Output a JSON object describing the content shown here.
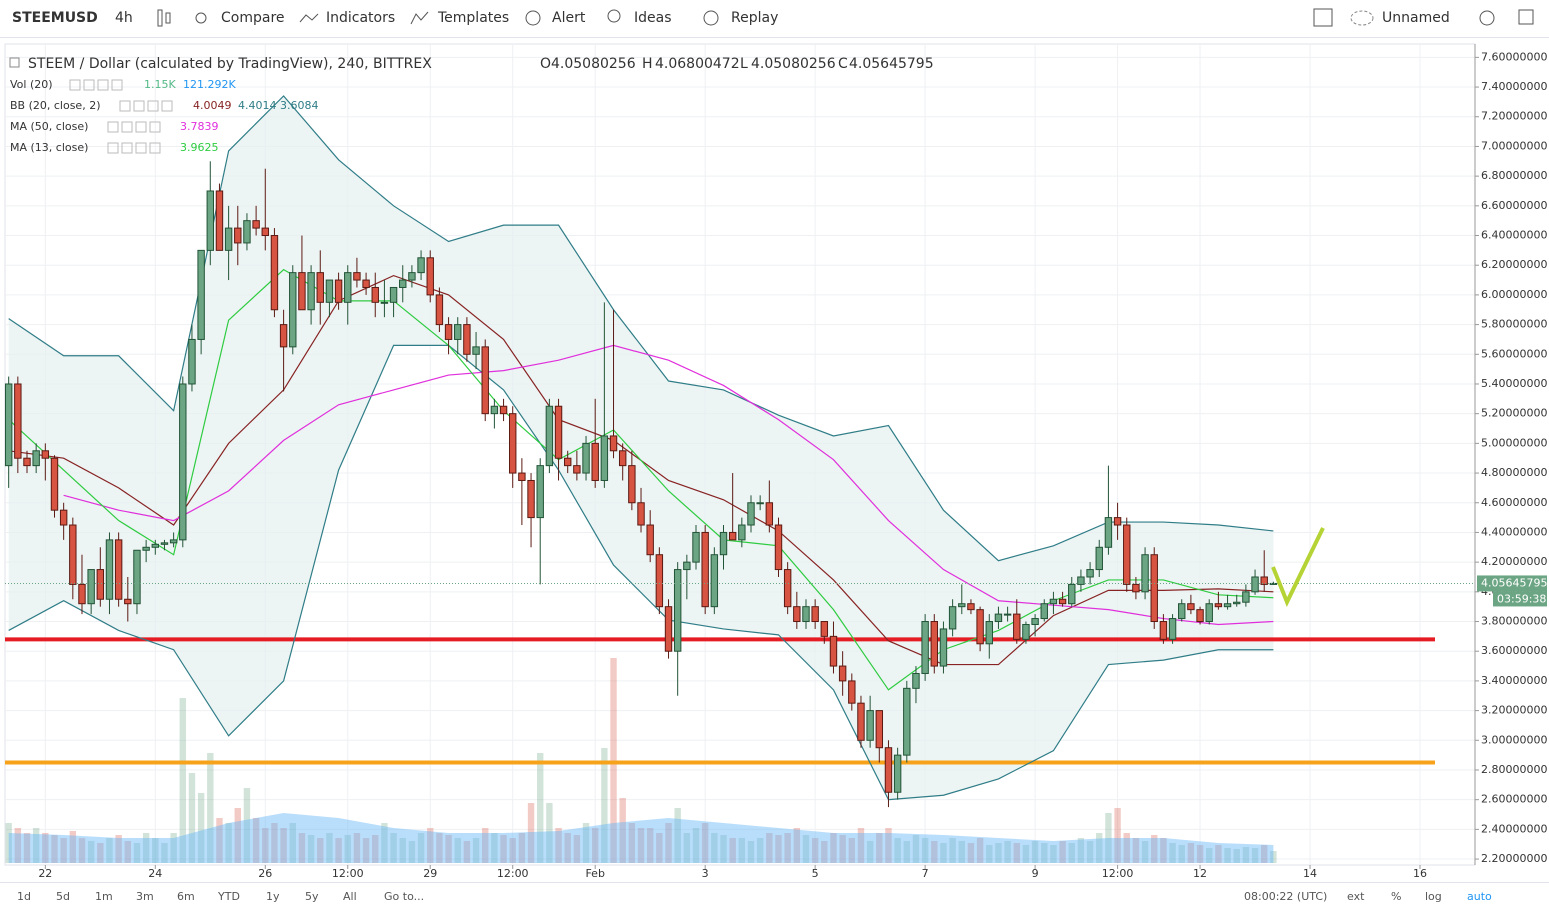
{
  "toolbar": {
    "symbol": "STEEMUSD",
    "interval": "4h",
    "items": [
      "Compare",
      "Indicators",
      "Templates",
      "Alert",
      "Ideas",
      "Replay"
    ],
    "layout_name": "Unnamed"
  },
  "legend": {
    "title": "STEEM / Dollar (calculated by TradingView), 240, BITTREX",
    "ohlc_labels": [
      "O",
      "H",
      "L",
      "C"
    ],
    "indicators": [
      {
        "name": "Vol (20)",
        "values": [
          "1.15K",
          "121.292K"
        ],
        "colors": [
          "#53b987",
          "#2196f3"
        ]
      },
      {
        "name": "BB (20, close, 2)",
        "values": [
          4.0049,
          4.4014,
          3.6084
        ],
        "colors": [
          "#872323",
          "#2f7d87",
          "#2f7d87"
        ]
      },
      {
        "name": "MA (50, close)",
        "values": [
          3.7839
        ],
        "colors": [
          "#e02fdc"
        ]
      },
      {
        "name": "MA (13, close)",
        "values": [
          3.9625
        ],
        "colors": [
          "#2ecc40"
        ]
      }
    ]
  },
  "bottom_bar": {
    "ranges": [
      "1d",
      "5d",
      "1m",
      "3m",
      "6m",
      "YTD",
      "1y",
      "5y",
      "All"
    ],
    "goto": "Go to...",
    "clock": "08:00:22 (UTC)",
    "options": [
      "ext",
      "%",
      "log",
      "auto"
    ]
  },
  "chart_data": {
    "type": "candlestick",
    "countdown": "03:59:38",
    "grid": true,
    "up_color": "#6ba583",
    "down_color": "#d75442",
    "xlim": [
      -0.4,
      160
    ],
    "ylim": [
      2.16,
      7.69
    ],
    "xticks": [
      {
        "value": 4,
        "label": "22"
      },
      {
        "value": 16,
        "label": "24"
      },
      {
        "value": 28,
        "label": "26"
      },
      {
        "value": 37,
        "label": "12:00"
      },
      {
        "value": 46,
        "label": "29"
      },
      {
        "value": 55,
        "label": "12:00"
      },
      {
        "value": 64,
        "label": "Feb"
      },
      {
        "value": 76,
        "label": "3"
      },
      {
        "value": 88,
        "label": "5"
      },
      {
        "value": 100,
        "label": "7"
      },
      {
        "value": 112,
        "label": "9"
      },
      {
        "value": 121,
        "label": "12:00"
      },
      {
        "value": 130,
        "label": "12"
      },
      {
        "value": 142,
        "label": "14"
      },
      {
        "value": 154,
        "label": "16"
      }
    ],
    "yticks": [
      {
        "value": 7.6,
        "label": "7.60000000"
      },
      {
        "value": 7.4,
        "label": "7.40000000"
      },
      {
        "value": 7.2,
        "label": "7.20000000"
      },
      {
        "value": 7.0,
        "label": "7.00000000"
      },
      {
        "value": 6.8,
        "label": "6.80000000"
      },
      {
        "value": 6.6,
        "label": "6.60000000"
      },
      {
        "value": 6.4,
        "label": "6.40000000"
      },
      {
        "value": 6.2,
        "label": "6.20000000"
      },
      {
        "value": 6.0,
        "label": "6.00000000"
      },
      {
        "value": 5.8,
        "label": "5.80000000"
      },
      {
        "value": 5.6,
        "label": "5.60000000"
      },
      {
        "value": 5.4,
        "label": "5.40000000"
      },
      {
        "value": 5.2,
        "label": "5.20000000"
      },
      {
        "value": 5.0,
        "label": "5.00000000"
      },
      {
        "value": 4.8,
        "label": "4.80000000"
      },
      {
        "value": 4.6,
        "label": "4.60000000"
      },
      {
        "value": 4.4,
        "label": "4.40000000"
      },
      {
        "value": 4.2,
        "label": "4.20000000"
      },
      {
        "value": 4.0,
        "label": "4.00000000"
      },
      {
        "value": 3.8,
        "label": "3.80000000"
      },
      {
        "value": 3.6,
        "label": "3.60000000"
      },
      {
        "value": 3.4,
        "label": "3.40000000"
      },
      {
        "value": 3.2,
        "label": "3.20000000"
      },
      {
        "value": 3.0,
        "label": "3.00000000"
      },
      {
        "value": 2.8,
        "label": "2.80000000"
      },
      {
        "value": 2.6,
        "label": "2.60000000"
      },
      {
        "value": 2.4,
        "label": "2.40000000"
      },
      {
        "value": 2.2,
        "label": "2.20000000"
      }
    ],
    "open": [
      4.85,
      5.4,
      4.9,
      4.85,
      4.95,
      4.9,
      4.55,
      4.45,
      4.05,
      3.92,
      4.15,
      3.95,
      4.35,
      3.95,
      3.92,
      4.28,
      4.3,
      4.32,
      4.33,
      4.35,
      5.4,
      5.7,
      6.3,
      6.7,
      6.3,
      6.45,
      6.35,
      6.5,
      6.45,
      6.4,
      5.8,
      5.65,
      6.15,
      5.9,
      6.15,
      5.95,
      6.1,
      5.95,
      6.15,
      6.1,
      6.05,
      5.95,
      5.95,
      6.05,
      6.1,
      6.15,
      6.25,
      6.0,
      5.8,
      5.7,
      5.8,
      5.6,
      5.65,
      5.2,
      5.25,
      5.2,
      4.8,
      4.75,
      4.5,
      4.85,
      5.25,
      4.9,
      4.85,
      4.8,
      5.0,
      4.75,
      5.05,
      4.95,
      4.85,
      4.6,
      4.45,
      4.25,
      3.9,
      3.6,
      4.15,
      4.2,
      4.4,
      3.9,
      4.25,
      4.4,
      4.35,
      4.45,
      4.6,
      4.6,
      4.45,
      4.15,
      3.9,
      3.8,
      3.9,
      3.8,
      3.7,
      3.5,
      3.4,
      3.25,
      3.0,
      3.2,
      2.95,
      2.65,
      2.9,
      3.35,
      3.45,
      3.8,
      3.5,
      3.75,
      3.9,
      3.92,
      3.88,
      3.65,
      3.8,
      3.85,
      3.85,
      3.68,
      3.78,
      3.82,
      3.92,
      3.95,
      3.92,
      4.05,
      4.1,
      4.15,
      4.3,
      4.5,
      4.45,
      4.05,
      4.0,
      4.25,
      3.8,
      3.68,
      3.82,
      3.92,
      3.88,
      3.8,
      3.92,
      3.9,
      3.92,
      3.93,
      4.0,
      4.1,
      4.05080256
    ],
    "high": [
      5.45,
      5.45,
      4.95,
      5.0,
      5.0,
      4.92,
      4.6,
      4.5,
      4.25,
      4.15,
      4.3,
      4.4,
      4.4,
      4.1,
      4.25,
      4.35,
      4.35,
      4.35,
      4.4,
      5.45,
      5.8,
      6.3,
      6.9,
      6.75,
      6.6,
      6.6,
      6.55,
      6.6,
      6.85,
      6.45,
      5.9,
      6.2,
      6.4,
      6.2,
      6.3,
      6.1,
      6.15,
      6.2,
      6.25,
      6.15,
      6.15,
      6.1,
      6.05,
      6.2,
      6.2,
      6.3,
      6.3,
      6.05,
      5.85,
      5.85,
      5.85,
      5.75,
      5.7,
      5.3,
      5.3,
      5.25,
      4.9,
      4.8,
      4.9,
      5.3,
      5.3,
      4.95,
      4.95,
      5.05,
      5.3,
      5.95,
      5.9,
      5.0,
      4.95,
      4.7,
      4.55,
      4.3,
      3.95,
      4.2,
      4.25,
      4.45,
      4.45,
      4.3,
      4.45,
      4.8,
      4.5,
      4.65,
      4.65,
      4.75,
      4.5,
      4.2,
      4.0,
      3.95,
      3.95,
      3.8,
      3.8,
      3.6,
      3.45,
      3.3,
      3.3,
      3.2,
      3.0,
      2.95,
      3.4,
      3.5,
      3.85,
      3.85,
      3.8,
      3.95,
      4.05,
      3.95,
      3.9,
      3.85,
      3.9,
      3.9,
      3.95,
      3.8,
      3.85,
      3.95,
      4.0,
      4.0,
      4.1,
      4.15,
      4.2,
      4.35,
      4.85,
      4.6,
      4.5,
      4.1,
      4.3,
      4.3,
      3.85,
      3.85,
      3.95,
      3.98,
      3.9,
      3.95,
      4.0,
      3.98,
      3.98,
      4.05,
      4.15,
      4.28,
      4.06800472
    ],
    "low": [
      4.7,
      4.8,
      4.8,
      4.8,
      4.75,
      4.5,
      4.35,
      3.95,
      3.85,
      3.85,
      3.9,
      3.85,
      3.9,
      3.8,
      3.85,
      4.2,
      4.25,
      4.28,
      4.3,
      4.3,
      5.35,
      5.6,
      6.2,
      6.3,
      6.1,
      6.2,
      6.3,
      6.4,
      6.3,
      5.85,
      5.35,
      5.6,
      5.9,
      5.8,
      5.8,
      5.85,
      5.9,
      5.8,
      6.05,
      6.0,
      5.85,
      5.85,
      5.85,
      5.95,
      6.05,
      6.1,
      5.95,
      5.75,
      5.6,
      5.6,
      5.55,
      5.5,
      5.15,
      5.1,
      5.15,
      4.7,
      4.45,
      4.3,
      4.05,
      4.8,
      4.75,
      4.8,
      4.75,
      4.75,
      4.7,
      4.7,
      4.9,
      4.75,
      4.55,
      4.4,
      4.2,
      3.85,
      3.55,
      3.3,
      3.95,
      4.15,
      3.85,
      3.85,
      4.15,
      4.35,
      4.3,
      4.4,
      4.55,
      4.4,
      4.1,
      3.85,
      3.75,
      3.75,
      3.75,
      3.65,
      3.45,
      3.3,
      3.2,
      2.95,
      2.95,
      2.85,
      2.55,
      2.6,
      2.85,
      3.25,
      3.4,
      3.45,
      3.45,
      3.7,
      3.85,
      3.85,
      3.6,
      3.55,
      3.75,
      3.8,
      3.65,
      3.65,
      3.7,
      3.8,
      3.85,
      3.9,
      3.9,
      4.0,
      4.05,
      4.1,
      4.25,
      4.35,
      4.0,
      3.95,
      3.95,
      3.75,
      3.65,
      3.65,
      3.8,
      3.85,
      3.78,
      3.78,
      3.88,
      3.88,
      3.9,
      3.9,
      3.98,
      4.0,
      4.05080256
    ],
    "close": [
      5.4,
      4.9,
      4.85,
      4.95,
      4.9,
      4.55,
      4.45,
      4.05,
      3.92,
      4.15,
      3.95,
      4.35,
      3.95,
      3.92,
      4.28,
      4.3,
      4.32,
      4.33,
      4.35,
      5.4,
      5.7,
      6.3,
      6.7,
      6.3,
      6.45,
      6.35,
      6.5,
      6.45,
      6.4,
      5.9,
      5.65,
      6.15,
      5.9,
      6.15,
      5.95,
      6.1,
      5.95,
      6.15,
      6.1,
      6.05,
      5.95,
      5.95,
      6.05,
      6.1,
      6.15,
      6.25,
      6.0,
      5.8,
      5.7,
      5.8,
      5.6,
      5.65,
      5.2,
      5.25,
      5.2,
      4.8,
      4.75,
      4.5,
      4.85,
      5.25,
      4.9,
      4.85,
      4.8,
      5.0,
      4.75,
      5.05,
      4.95,
      4.85,
      4.6,
      4.45,
      4.25,
      3.9,
      3.6,
      4.15,
      4.2,
      4.4,
      3.9,
      4.25,
      4.4,
      4.35,
      4.45,
      4.6,
      4.6,
      4.45,
      4.15,
      3.9,
      3.8,
      3.9,
      3.8,
      3.7,
      3.5,
      3.4,
      3.25,
      3.0,
      3.2,
      2.95,
      2.65,
      2.9,
      3.35,
      3.45,
      3.8,
      3.5,
      3.75,
      3.9,
      3.92,
      3.88,
      3.65,
      3.8,
      3.85,
      3.85,
      3.68,
      3.78,
      3.82,
      3.92,
      3.95,
      3.92,
      4.05,
      4.1,
      4.15,
      4.3,
      4.5,
      4.45,
      4.05,
      4.0,
      4.25,
      3.8,
      3.68,
      3.82,
      3.92,
      3.88,
      3.8,
      3.92,
      3.9,
      3.92,
      3.93,
      4.0,
      4.1,
      4.05,
      4.05645795
    ],
    "volume": [
      40,
      35,
      30,
      35,
      30,
      28,
      25,
      32,
      25,
      22,
      20,
      25,
      28,
      22,
      20,
      30,
      25,
      20,
      30,
      165,
      90,
      70,
      110,
      45,
      40,
      55,
      75,
      45,
      35,
      40,
      35,
      40,
      30,
      28,
      25,
      30,
      25,
      28,
      30,
      25,
      28,
      40,
      30,
      25,
      22,
      30,
      35,
      30,
      28,
      25,
      22,
      25,
      35,
      30,
      28,
      25,
      30,
      60,
      110,
      60,
      35,
      30,
      28,
      40,
      35,
      115,
      205,
      65,
      40,
      35,
      35,
      30,
      40,
      55,
      30,
      35,
      40,
      30,
      28,
      25,
      25,
      22,
      25,
      30,
      28,
      30,
      35,
      28,
      25,
      22,
      30,
      28,
      25,
      35,
      22,
      30,
      35,
      25,
      22,
      28,
      25,
      22,
      20,
      25,
      22,
      20,
      25,
      18,
      20,
      22,
      20,
      18,
      22,
      20,
      18,
      22,
      20,
      25,
      22,
      30,
      50,
      55,
      30,
      25,
      22,
      28,
      25,
      20,
      18,
      20,
      18,
      15,
      18,
      15,
      14,
      16,
      15,
      18,
      12
    ],
    "volume_ma": {
      "color": "#64b5f6",
      "values": [
        30,
        28,
        25,
        25,
        40,
        50,
        45,
        35,
        30,
        30,
        32,
        40,
        45,
        40,
        35,
        30,
        30,
        28,
        25,
        22,
        25,
        25,
        20,
        18
      ]
    },
    "lines": {
      "x": [
        0,
        6,
        12,
        18,
        24,
        30,
        36,
        42,
        48,
        54,
        60,
        66,
        72,
        78,
        84,
        90,
        96,
        102,
        108,
        114,
        120,
        126,
        132,
        138
      ],
      "band_fill": "#e6f0f0",
      "series": [
        {
          "color": "#2f7d87",
          "values": [
            5.84,
            5.59,
            5.59,
            5.22,
            6.97,
            7.34,
            6.91,
            6.6,
            6.36,
            6.47,
            6.47,
            5.9,
            5.42,
            5.36,
            5.19,
            5.05,
            5.12,
            4.55,
            4.21,
            4.31,
            4.47,
            4.47,
            4.45,
            4.41
          ]
        },
        {
          "color": "#2f7d87",
          "values": [
            3.74,
            3.94,
            3.74,
            3.61,
            3.03,
            3.4,
            4.82,
            5.66,
            5.66,
            5.36,
            4.82,
            4.18,
            3.81,
            3.75,
            3.71,
            3.34,
            2.6,
            2.63,
            2.74,
            2.93,
            3.51,
            3.54,
            3.61,
            3.61
          ]
        },
        {
          "color": "#872323",
          "values": [
            4.95,
            4.9,
            4.7,
            4.45,
            5.0,
            5.36,
            5.96,
            6.13,
            6.0,
            5.7,
            5.16,
            5.02,
            4.75,
            4.62,
            4.41,
            4.08,
            3.67,
            3.51,
            3.51,
            3.84,
            4.01,
            4.01,
            4.02,
            4.0
          ]
        },
        {
          "color": "#e02fdc",
          "values": [
            null,
            4.65,
            4.55,
            4.48,
            4.68,
            5.02,
            5.26,
            5.36,
            5.46,
            5.49,
            5.56,
            5.66,
            5.56,
            5.39,
            5.16,
            4.89,
            4.48,
            4.15,
            3.94,
            3.91,
            3.88,
            3.82,
            3.78,
            3.8
          ]
        },
        {
          "color": "#2ecc40",
          "values": [
            5.16,
            4.82,
            4.48,
            4.25,
            5.83,
            6.17,
            5.96,
            5.96,
            5.66,
            5.22,
            4.89,
            5.09,
            4.68,
            4.35,
            4.31,
            3.88,
            3.34,
            3.61,
            3.74,
            3.94,
            4.08,
            4.08,
            3.98,
            3.96
          ]
        }
      ]
    },
    "hlines": [
      {
        "value": 3.68,
        "color": "#e51c23"
      },
      {
        "value": 2.85,
        "color": "#f7a21b"
      }
    ]
  }
}
